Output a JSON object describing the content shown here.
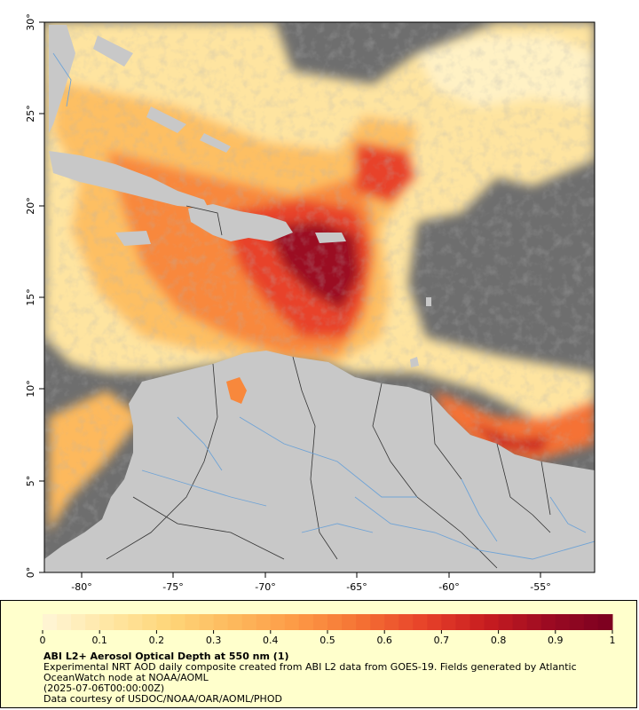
{
  "map": {
    "x_ticks": [
      "-80°",
      "-75°",
      "-70°",
      "-65°",
      "-60°",
      "-55°"
    ],
    "y_ticks": [
      "30°",
      "25°",
      "20°",
      "15°",
      "10°",
      "5°",
      "0°"
    ],
    "colors": {
      "ocean_no_data": "#6e6e6e",
      "land": "#c8c8c8",
      "rivers": "#6fa3d6",
      "borders": "#333333"
    }
  },
  "legend": {
    "ticks": [
      "0",
      "0.1",
      "0.2",
      "0.3",
      "0.4",
      "0.5",
      "0.6",
      "0.7",
      "0.8",
      "0.9",
      "1"
    ],
    "color_stops": [
      "#fff6d8",
      "#ffe7a6",
      "#fed679",
      "#fdb95d",
      "#fd9a46",
      "#f57234",
      "#e8432a",
      "#c81d20",
      "#9b0a22",
      "#7a0020"
    ]
  },
  "metadata": {
    "title": "ABI L2+ Aerosol Optical Depth at 550 nm (1)",
    "description": "Experimental NRT AOD daily composite created from ABI L2 data from GOES-19. Fields generated by Atlantic OceanWatch node at NOAA/AOML",
    "date": "(2025-07-06T00:00:00Z)",
    "credit": "Data courtesy of USDOC/NOAA/OAR/AOML/PHOD"
  }
}
